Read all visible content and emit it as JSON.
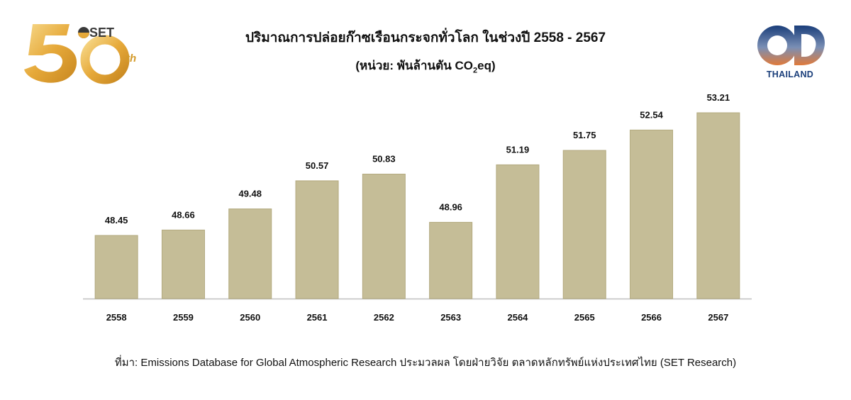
{
  "header": {
    "title": "ปริมาณการปล่อยก๊าซเรือนกระจกทั่วโลก ในช่วงปี 2558 - 2567",
    "unit_prefix": "(หน่วย: พันล้านตัน CO",
    "unit_sub": "2",
    "unit_suffix": "eq)"
  },
  "logos": {
    "set_logo": {
      "text": "SET",
      "suffix": "th",
      "colors": [
        "#e6a93a",
        "#f4d27a",
        "#3a3a3a"
      ]
    },
    "sd_logo": {
      "text": "THAILAND",
      "colors": [
        "#1a3e7a",
        "#e07a3a"
      ]
    }
  },
  "chart_data": {
    "type": "bar",
    "categories": [
      "2558",
      "2559",
      "2560",
      "2561",
      "2562",
      "2563",
      "2564",
      "2565",
      "2566",
      "2567"
    ],
    "values": [
      48.45,
      48.66,
      49.48,
      50.57,
      50.83,
      48.96,
      51.19,
      51.75,
      52.54,
      53.21
    ],
    "value_labels": [
      "48.45",
      "48.66",
      "49.48",
      "50.57",
      "50.83",
      "48.96",
      "51.19",
      "51.75",
      "52.54",
      "53.21"
    ],
    "ylim": [
      46.0,
      53.21
    ],
    "bar_color": "#c5bd97",
    "bar_edge_color": "#b3aa7f",
    "grid": false,
    "legend": "none",
    "axis_line_color": "#bfbfbf"
  },
  "footer": {
    "source": "ที่มา: Emissions Database for Global Atmospheric Research ประมวลผล โดยฝ่ายวิจัย ตลาดหลักทรัพย์แห่งประเทศไทย (SET Research)"
  }
}
